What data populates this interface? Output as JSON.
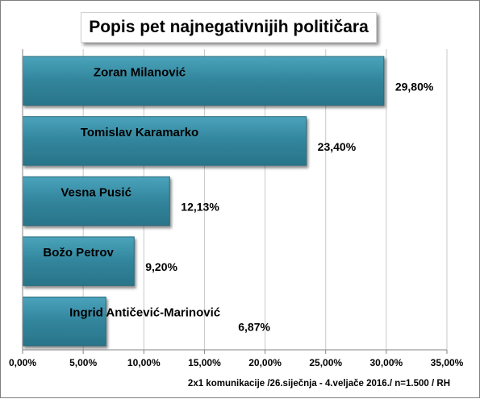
{
  "chart_data": {
    "type": "bar",
    "orientation": "horizontal",
    "title": "Popis pet najnegativnijih političara",
    "categories": [
      "Zoran Milanović",
      "Tomislav Karamarko",
      "Vesna Pusić",
      "Božo Petrov",
      "Ingrid Antičević-Marinović"
    ],
    "values": [
      29.8,
      23.4,
      12.13,
      9.2,
      6.87
    ],
    "value_labels": [
      "29,80%",
      "23,40%",
      "12,13%",
      "9,20%",
      "6,87%"
    ],
    "xlim": [
      0,
      35
    ],
    "xticks": [
      0,
      5,
      10,
      15,
      20,
      25,
      30,
      35
    ],
    "xtick_labels": [
      "0,00%",
      "5,00%",
      "10,00%",
      "15,00%",
      "20,00%",
      "25,00%",
      "30,00%",
      "35,00%"
    ],
    "xlabel": "",
    "ylabel": "",
    "grid": "vertical",
    "bar_color": "#31859c",
    "note": "2x1 komunikacije /26.siječnja - 4.veljače 2016./ n=1.500 / RH"
  }
}
